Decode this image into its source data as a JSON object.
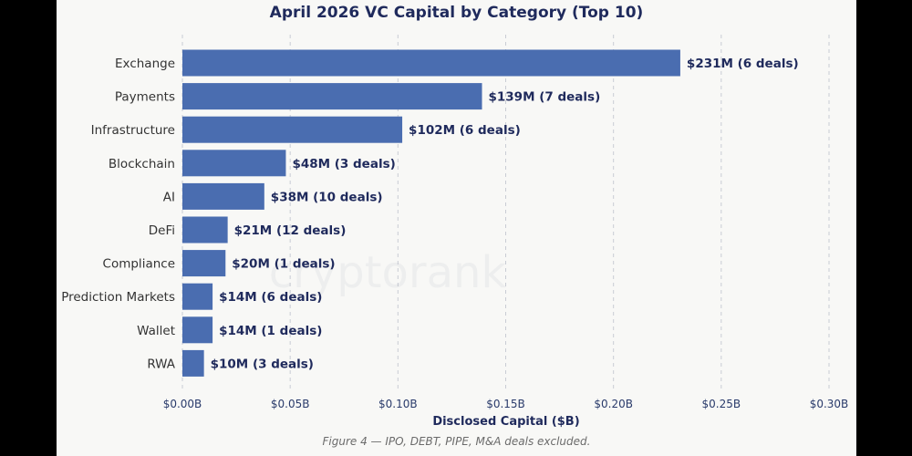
{
  "chart_data": {
    "type": "bar",
    "orientation": "horizontal",
    "title": "April 2026 VC Capital by Category (Top 10)",
    "xlabel": "Disclosed Capital ($B)",
    "ylabel": "",
    "xlim": [
      0,
      0.3
    ],
    "xticks": [
      0,
      0.05,
      0.1,
      0.15,
      0.2,
      0.25,
      0.3
    ],
    "xtick_labels": [
      "$0.00B",
      "$0.05B",
      "$0.10B",
      "$0.15B",
      "$0.20B",
      "$0.25B",
      "$0.30B"
    ],
    "grid": "vertical dashed",
    "categories": [
      "Exchange",
      "Payments",
      "Infrastructure",
      "Blockchain",
      "AI",
      "DeFi",
      "Compliance",
      "Prediction Markets",
      "Wallet",
      "RWA"
    ],
    "values": [
      0.231,
      0.139,
      0.102,
      0.048,
      0.038,
      0.021,
      0.02,
      0.014,
      0.014,
      0.01
    ],
    "data_labels": [
      "$231M  (6 deals)",
      "$139M  (7 deals)",
      "$102M  (6 deals)",
      "$48M  (3 deals)",
      "$38M  (10 deals)",
      "$21M  (12 deals)",
      "$20M  (1 deals)",
      "$14M  (6 deals)",
      "$14M  (1 deals)",
      "$10M  (3 deals)"
    ],
    "deals": [
      6,
      7,
      6,
      3,
      10,
      12,
      1,
      6,
      1,
      3
    ],
    "bar_color": "#4a6db0",
    "watermark": "cryptorank"
  },
  "caption": "Figure 4 — IPO, DEBT, PIPE, M&A deals excluded."
}
